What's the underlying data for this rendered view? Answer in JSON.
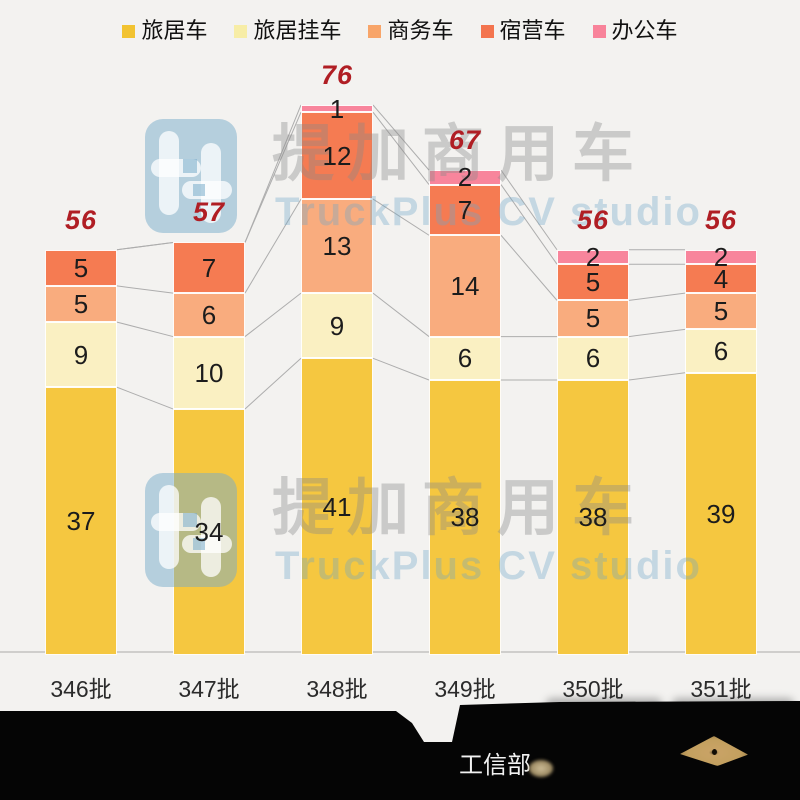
{
  "legend": {
    "items": [
      {
        "label": "旅居车",
        "color": "#F2C331"
      },
      {
        "label": "旅居挂车",
        "color": "#F7EDA6"
      },
      {
        "label": "商务车",
        "color": "#F8A569"
      },
      {
        "label": "宿营车",
        "color": "#F3744E"
      },
      {
        "label": "办公车",
        "color": "#F8839A"
      }
    ]
  },
  "chart_data": {
    "type": "bar",
    "stacked": true,
    "categories": [
      "346批",
      "347批",
      "348批",
      "349批",
      "350批",
      "351批"
    ],
    "series": [
      {
        "name": "旅居车",
        "color": "#F5C740",
        "values": [
          37,
          34,
          41,
          38,
          38,
          39
        ]
      },
      {
        "name": "旅居挂车",
        "color": "#FAF0C2",
        "values": [
          9,
          10,
          9,
          6,
          6,
          6
        ]
      },
      {
        "name": "商务车",
        "color": "#F9AC7E",
        "values": [
          5,
          6,
          13,
          14,
          5,
          5
        ]
      },
      {
        "name": "宿营车",
        "color": "#F57B52",
        "values": [
          5,
          7,
          12,
          7,
          5,
          4
        ]
      },
      {
        "name": "办公车",
        "color": "#F8859C",
        "values": [
          0,
          0,
          1,
          2,
          2,
          2
        ]
      }
    ],
    "totals": [
      56,
      57,
      76,
      67,
      56,
      56
    ],
    "total_label_color": "#B01E24",
    "value_label_color": "#1C1C1C",
    "connector_line_color": "#ADADAD",
    "legend_position": "top",
    "grid": false,
    "ylim": [
      0,
      80
    ]
  },
  "watermark": {
    "title": "提加商用车",
    "subtitle": "TruckPlus CV studio"
  },
  "footer": {
    "ministry_label": "工信部"
  }
}
